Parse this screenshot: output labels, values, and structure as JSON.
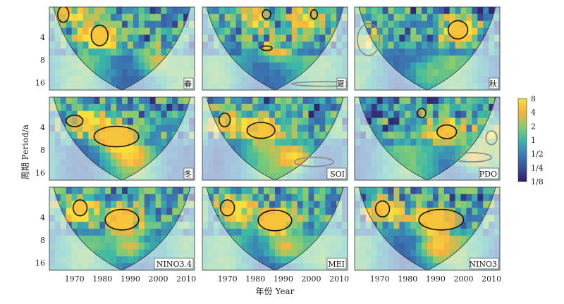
{
  "chart_data": {
    "type": "heatmap",
    "description_scale": "log2",
    "ylabel": "周期  Period/a",
    "xlabel": "年份  Year",
    "x_ticks": [
      "1970",
      "1980",
      "1990",
      "2000",
      "2010"
    ],
    "x_tick_values": [
      1970,
      1980,
      1990,
      2000,
      2010
    ],
    "y_ticks": [
      "4",
      "8",
      "16"
    ],
    "y_tick_values": [
      4,
      8,
      16
    ],
    "xlim": [
      1961,
      2013
    ],
    "ylim": [
      1.6,
      20
    ],
    "colorbar": {
      "labels": [
        "8",
        "4",
        "2",
        "1",
        "1/2",
        "1/4",
        "1/8"
      ],
      "colors": [
        "#f7e03a",
        "#f6b23e",
        "#8ccc6e",
        "#3bb8a8",
        "#3a7fb6",
        "#3a4f9a",
        "#2e1d64"
      ]
    },
    "panels": [
      {
        "label": "春"
      },
      {
        "label": "夏"
      },
      {
        "label": "秋"
      },
      {
        "label": "冬"
      },
      {
        "label": "SOI"
      },
      {
        "label": "PDO"
      },
      {
        "label": "NINO3.4"
      },
      {
        "label": "MEI"
      },
      {
        "label": "NINO3"
      }
    ]
  }
}
